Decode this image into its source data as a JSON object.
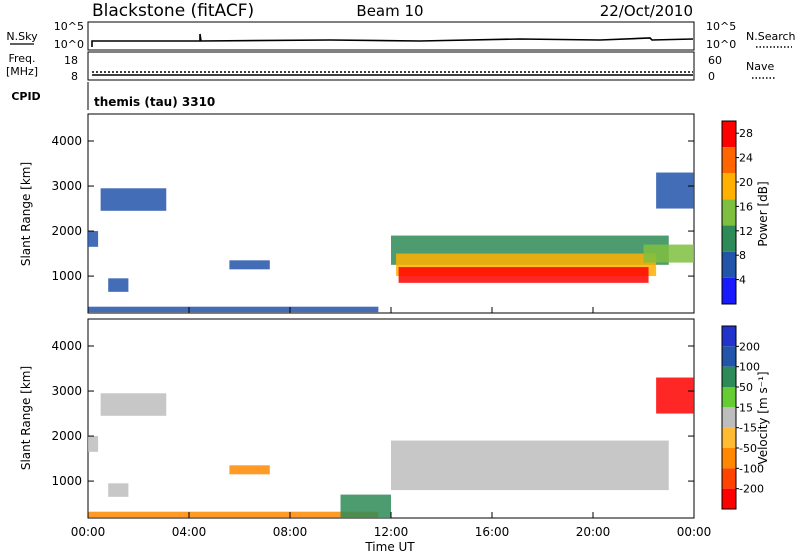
{
  "header": {
    "station": "Blackstone (fitACF)",
    "beam": "Beam 10",
    "date": "22/Oct/2010"
  },
  "colors": {
    "line": "#000000",
    "power_scale": [
      "#1a1aff",
      "#2255aa",
      "#2e8b57",
      "#7fbf3f",
      "#ffb000",
      "#ff6600",
      "#ff0000"
    ],
    "velocity_scale": [
      "#ff0000",
      "#ff4400",
      "#ff8800",
      "#ffbb33",
      "#bdbdbd",
      "#66cc33",
      "#2e8b57",
      "#2255aa",
      "#2233cc"
    ]
  },
  "strip_panels": {
    "nsky_label": "N.Sky",
    "nsky_ticks": [
      "10^5",
      "10^0"
    ],
    "nsearch_label": "N.Search",
    "nsearch_ticks": [
      "10^5",
      "10^0"
    ],
    "freq_label_1": "Freq.",
    "freq_label_2": "[MHz]",
    "freq_ticks": [
      "18",
      "8"
    ],
    "nave_label": "Nave",
    "nave_ticks": [
      "60",
      "0"
    ],
    "cpid_label": "CPID",
    "cpid_value": "themis (tau) 3310"
  },
  "chart_data": [
    {
      "type": "heatmap",
      "name": "Power",
      "ylabel": "Slant Range [km]",
      "ylim": [
        180,
        4600
      ],
      "xlim": [
        "00:00",
        "24:00"
      ],
      "yticks": [
        "1000",
        "2000",
        "3000",
        "4000"
      ],
      "colorbar_label": "Power [dB]",
      "colorbar_ticks": [
        "4",
        "8",
        "12",
        "16",
        "20",
        "24",
        "28"
      ],
      "regions": [
        {
          "t0": 0.0,
          "t1": 0.4,
          "r0": 1650,
          "r1": 2000,
          "value": "8"
        },
        {
          "t0": 0.5,
          "t1": 3.1,
          "r0": 2450,
          "r1": 2950,
          "value": "6"
        },
        {
          "t0": 0.8,
          "t1": 1.6,
          "r0": 650,
          "r1": 950,
          "value": "6"
        },
        {
          "t0": 5.6,
          "t1": 7.2,
          "r0": 1150,
          "r1": 1350,
          "value": "6"
        },
        {
          "t0": 0.0,
          "t1": 11.5,
          "r0": 200,
          "r1": 320,
          "value": "6"
        },
        {
          "t0": 12.0,
          "t1": 23.0,
          "r0": 1250,
          "r1": 1900,
          "value": "10"
        },
        {
          "t0": 12.2,
          "t1": 22.5,
          "r0": 1000,
          "r1": 1500,
          "value": "18"
        },
        {
          "t0": 12.3,
          "t1": 22.2,
          "r0": 850,
          "r1": 1200,
          "value": "28"
        },
        {
          "t0": 22.0,
          "t1": 24.0,
          "r0": 1300,
          "r1": 1700,
          "value": "16"
        },
        {
          "t0": 22.5,
          "t1": 24.0,
          "r0": 2500,
          "r1": 3300,
          "value": "6"
        }
      ]
    },
    {
      "type": "heatmap",
      "name": "Velocity",
      "ylabel": "Slant Range [km]",
      "ylim": [
        180,
        4600
      ],
      "xlabel": "Time UT",
      "xticks": [
        "00:00",
        "04:00",
        "08:00",
        "12:00",
        "16:00",
        "20:00",
        "00:00"
      ],
      "yticks": [
        "1000",
        "2000",
        "3000",
        "4000"
      ],
      "colorbar_label": "Velocity [m s⁻¹]",
      "colorbar_ticks": [
        "200",
        "100",
        "50",
        "15",
        "-15",
        "-50",
        "-100",
        "-200"
      ],
      "regions": [
        {
          "t0": 0.0,
          "t1": 0.4,
          "r0": 1650,
          "r1": 2000,
          "value": "0"
        },
        {
          "t0": 0.5,
          "t1": 3.1,
          "r0": 2450,
          "r1": 2950,
          "value": "0"
        },
        {
          "t0": 0.8,
          "t1": 1.6,
          "r0": 650,
          "r1": 950,
          "value": "0"
        },
        {
          "t0": 5.6,
          "t1": 7.2,
          "r0": 1150,
          "r1": 1350,
          "value": "-60"
        },
        {
          "t0": 0.0,
          "t1": 11.5,
          "r0": 200,
          "r1": 320,
          "value": "-60"
        },
        {
          "t0": 12.0,
          "t1": 23.0,
          "r0": 800,
          "r1": 1900,
          "value": "0"
        },
        {
          "t0": 10.0,
          "t1": 12.0,
          "r0": 200,
          "r1": 700,
          "value": "40"
        },
        {
          "t0": 22.5,
          "t1": 24.0,
          "r0": 2500,
          "r1": 3300,
          "value": "-200"
        }
      ]
    }
  ]
}
